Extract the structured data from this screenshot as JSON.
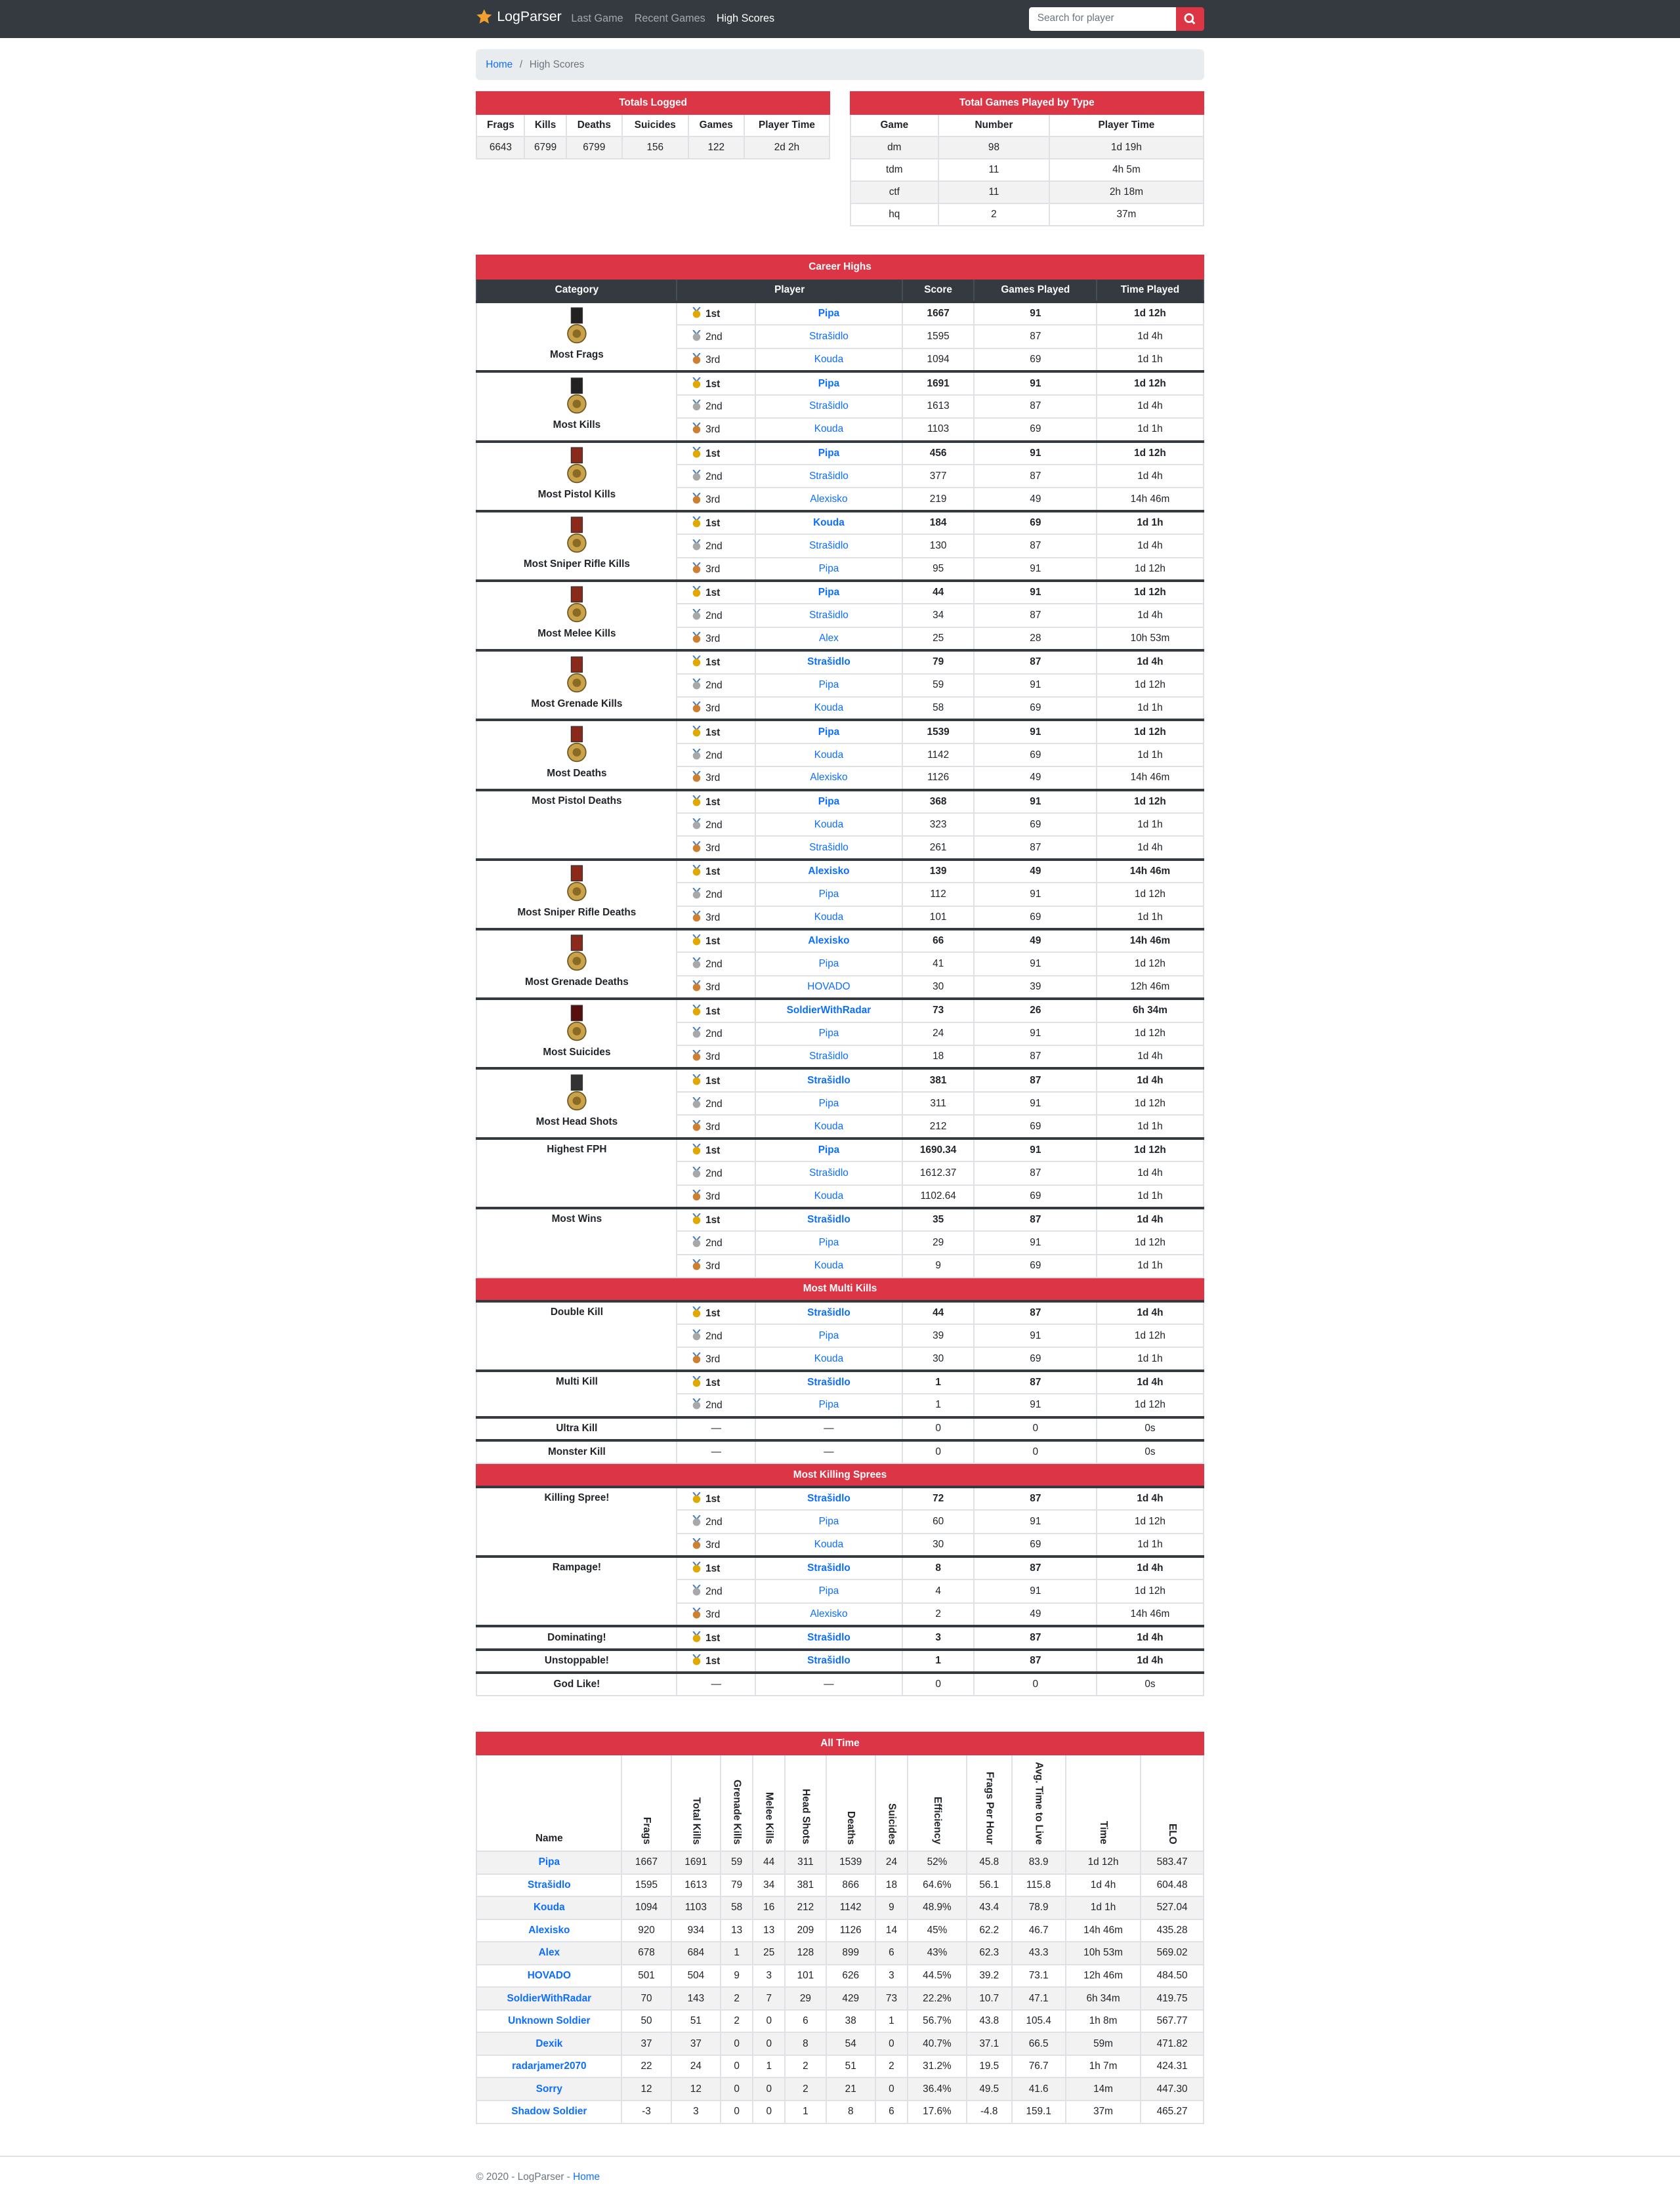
{
  "nav": {
    "brand": "LogParser",
    "links": [
      "Last Game",
      "Recent Games",
      "High Scores"
    ],
    "active": 2,
    "search_placeholder": "Search for player"
  },
  "breadcrumb": {
    "items": [
      "Home",
      "High Scores"
    ],
    "separator": "/"
  },
  "totals": {
    "title": "Totals Logged",
    "headers": [
      "Frags",
      "Kills",
      "Deaths",
      "Suicides",
      "Games",
      "Player Time"
    ],
    "rows": [
      [
        6643,
        6799,
        6799,
        156,
        122,
        "2d 2h"
      ]
    ]
  },
  "games_by_type": {
    "title": "Total Games Played by Type",
    "headers": [
      "Game",
      "Number",
      "Player Time"
    ],
    "rows": [
      [
        "dm",
        98,
        "1d 19h"
      ],
      [
        "tdm",
        11,
        "4h 5m"
      ],
      [
        "ctf",
        11,
        "2h 18m"
      ],
      [
        "hq",
        2,
        "37m"
      ]
    ]
  },
  "career": {
    "headers": [
      "Category",
      "Player",
      "Score",
      "Games Played",
      "Time Played"
    ],
    "sections": [
      {
        "title": "Career Highs",
        "categories": [
          {
            "name": "Most Frags",
            "medal": "#222222",
            "entries": [
              [
                "1st",
                "Pipa",
                1667,
                91,
                "1d 12h"
              ],
              [
                "2nd",
                "Strašidlo",
                1595,
                87,
                "1d 4h"
              ],
              [
                "3rd",
                "Kouda",
                1094,
                69,
                "1d 1h"
              ]
            ]
          },
          {
            "name": "Most Kills",
            "medal": "#222222",
            "entries": [
              [
                "1st",
                "Pipa",
                1691,
                91,
                "1d 12h"
              ],
              [
                "2nd",
                "Strašidlo",
                1613,
                87,
                "1d 4h"
              ],
              [
                "3rd",
                "Kouda",
                1103,
                69,
                "1d 1h"
              ]
            ]
          },
          {
            "name": "Most Pistol Kills",
            "medal": "#8b2a1a",
            "entries": [
              [
                "1st",
                "Pipa",
                456,
                91,
                "1d 12h"
              ],
              [
                "2nd",
                "Strašidlo",
                377,
                87,
                "1d 4h"
              ],
              [
                "3rd",
                "Alexisko",
                219,
                49,
                "14h 46m"
              ]
            ]
          },
          {
            "name": "Most Sniper Rifle Kills",
            "medal": "#8b2a1a",
            "entries": [
              [
                "1st",
                "Kouda",
                184,
                69,
                "1d 1h"
              ],
              [
                "2nd",
                "Strašidlo",
                130,
                87,
                "1d 4h"
              ],
              [
                "3rd",
                "Pipa",
                95,
                91,
                "1d 12h"
              ]
            ]
          },
          {
            "name": "Most Melee Kills",
            "medal": "#8b2a1a",
            "entries": [
              [
                "1st",
                "Pipa",
                44,
                91,
                "1d 12h"
              ],
              [
                "2nd",
                "Strašidlo",
                34,
                87,
                "1d 4h"
              ],
              [
                "3rd",
                "Alex",
                25,
                28,
                "10h 53m"
              ]
            ]
          },
          {
            "name": "Most Grenade Kills",
            "medal": "#8b2a1a",
            "entries": [
              [
                "1st",
                "Strašidlo",
                79,
                87,
                "1d 4h"
              ],
              [
                "2nd",
                "Pipa",
                59,
                91,
                "1d 12h"
              ],
              [
                "3rd",
                "Kouda",
                58,
                69,
                "1d 1h"
              ]
            ]
          },
          {
            "name": "Most Deaths",
            "medal": "#8b2a1a",
            "entries": [
              [
                "1st",
                "Pipa",
                1539,
                91,
                "1d 12h"
              ],
              [
                "2nd",
                "Kouda",
                1142,
                69,
                "1d 1h"
              ],
              [
                "3rd",
                "Alexisko",
                1126,
                49,
                "14h 46m"
              ]
            ]
          },
          {
            "name": "Most Pistol Deaths",
            "entries": [
              [
                "1st",
                "Pipa",
                368,
                91,
                "1d 12h"
              ],
              [
                "2nd",
                "Kouda",
                323,
                69,
                "1d 1h"
              ],
              [
                "3rd",
                "Strašidlo",
                261,
                87,
                "1d 4h"
              ]
            ]
          },
          {
            "name": "Most Sniper Rifle Deaths",
            "medal": "#8b2a1a",
            "entries": [
              [
                "1st",
                "Alexisko",
                139,
                49,
                "14h 46m"
              ],
              [
                "2nd",
                "Pipa",
                112,
                91,
                "1d 12h"
              ],
              [
                "3rd",
                "Kouda",
                101,
                69,
                "1d 1h"
              ]
            ]
          },
          {
            "name": "Most Grenade Deaths",
            "medal": "#8b2a1a",
            "entries": [
              [
                "1st",
                "Alexisko",
                66,
                49,
                "14h 46m"
              ],
              [
                "2nd",
                "Pipa",
                41,
                91,
                "1d 12h"
              ],
              [
                "3rd",
                "HOVADO",
                30,
                39,
                "12h 46m"
              ]
            ]
          },
          {
            "name": "Most Suicides",
            "medal": "#5a0f0f",
            "entries": [
              [
                "1st",
                "SoldierWithRadar",
                73,
                26,
                "6h 34m"
              ],
              [
                "2nd",
                "Pipa",
                24,
                91,
                "1d 12h"
              ],
              [
                "3rd",
                "Strašidlo",
                18,
                87,
                "1d 4h"
              ]
            ]
          },
          {
            "name": "Most Head Shots",
            "medal": "#333333",
            "entries": [
              [
                "1st",
                "Strašidlo",
                381,
                87,
                "1d 4h"
              ],
              [
                "2nd",
                "Pipa",
                311,
                91,
                "1d 12h"
              ],
              [
                "3rd",
                "Kouda",
                212,
                69,
                "1d 1h"
              ]
            ]
          },
          {
            "name": "Highest FPH",
            "entries": [
              [
                "1st",
                "Pipa",
                1690.34,
                91,
                "1d 12h"
              ],
              [
                "2nd",
                "Strašidlo",
                1612.37,
                87,
                "1d 4h"
              ],
              [
                "3rd",
                "Kouda",
                1102.64,
                69,
                "1d 1h"
              ]
            ]
          },
          {
            "name": "Most Wins",
            "entries": [
              [
                "1st",
                "Strašidlo",
                35,
                87,
                "1d 4h"
              ],
              [
                "2nd",
                "Pipa",
                29,
                91,
                "1d 12h"
              ],
              [
                "3rd",
                "Kouda",
                9,
                69,
                "1d 1h"
              ]
            ]
          }
        ]
      },
      {
        "title": "Most Multi Kills",
        "categories": [
          {
            "name": "Double Kill",
            "entries": [
              [
                "1st",
                "Strašidlo",
                44,
                87,
                "1d 4h"
              ],
              [
                "2nd",
                "Pipa",
                39,
                91,
                "1d 12h"
              ],
              [
                "3rd",
                "Kouda",
                30,
                69,
                "1d 1h"
              ]
            ]
          },
          {
            "name": "Multi Kill",
            "entries": [
              [
                "1st",
                "Strašidlo",
                1,
                87,
                "1d 4h"
              ],
              [
                "2nd",
                "Pipa",
                1,
                91,
                "1d 12h"
              ]
            ]
          },
          {
            "name": "Ultra Kill",
            "entries": [
              [
                "—",
                "—",
                0,
                0,
                "0s"
              ]
            ]
          },
          {
            "name": "Monster Kill",
            "entries": [
              [
                "—",
                "—",
                0,
                0,
                "0s"
              ]
            ]
          }
        ]
      },
      {
        "title": "Most Killing Sprees",
        "categories": [
          {
            "name": "Killing Spree!",
            "entries": [
              [
                "1st",
                "Strašidlo",
                72,
                87,
                "1d 4h"
              ],
              [
                "2nd",
                "Pipa",
                60,
                91,
                "1d 12h"
              ],
              [
                "3rd",
                "Kouda",
                30,
                69,
                "1d 1h"
              ]
            ]
          },
          {
            "name": "Rampage!",
            "entries": [
              [
                "1st",
                "Strašidlo",
                8,
                87,
                "1d 4h"
              ],
              [
                "2nd",
                "Pipa",
                4,
                91,
                "1d 12h"
              ],
              [
                "3rd",
                "Alexisko",
                2,
                49,
                "14h 46m"
              ]
            ]
          },
          {
            "name": "Dominating!",
            "entries": [
              [
                "1st",
                "Strašidlo",
                3,
                87,
                "1d 4h"
              ]
            ]
          },
          {
            "name": "Unstoppable!",
            "entries": [
              [
                "1st",
                "Strašidlo",
                1,
                87,
                "1d 4h"
              ]
            ]
          },
          {
            "name": "God Like!",
            "entries": [
              [
                "—",
                "—",
                0,
                0,
                "0s"
              ]
            ]
          }
        ]
      }
    ]
  },
  "all_time": {
    "title": "All Time",
    "headers": [
      "Name",
      "Frags",
      "Total Kills",
      "Grenade Kills",
      "Melee Kills",
      "Head Shots",
      "Deaths",
      "Suicides",
      "Efficiency",
      "Frags Per Hour",
      "Avg. Time to Live",
      "Time",
      "ELO"
    ],
    "rows": [
      [
        "Pipa",
        1667,
        1691,
        59,
        44,
        311,
        1539,
        24,
        "52%",
        45.8,
        83.9,
        "1d 12h",
        583.47
      ],
      [
        "Strašidlo",
        1595,
        1613,
        79,
        34,
        381,
        866,
        18,
        "64.6%",
        56.1,
        115.8,
        "1d 4h",
        604.48
      ],
      [
        "Kouda",
        1094,
        1103,
        58,
        16,
        212,
        1142,
        9,
        "48.9%",
        43.4,
        78.9,
        "1d 1h",
        527.04
      ],
      [
        "Alexisko",
        920,
        934,
        13,
        13,
        209,
        1126,
        14,
        "45%",
        62.2,
        46.7,
        "14h 46m",
        435.28
      ],
      [
        "Alex",
        678,
        684,
        1,
        25,
        128,
        899,
        6,
        "43%",
        62.3,
        43.3,
        "10h 53m",
        569.02
      ],
      [
        "HOVADO",
        501,
        504,
        9,
        3,
        101,
        626,
        3,
        "44.5%",
        39.2,
        73.1,
        "12h 46m",
        "484.50"
      ],
      [
        "SoldierWithRadar",
        70,
        143,
        2,
        7,
        29,
        429,
        73,
        "22.2%",
        10.7,
        47.1,
        "6h 34m",
        419.75
      ],
      [
        "Unknown Soldier",
        50,
        51,
        2,
        0,
        6,
        38,
        1,
        "56.7%",
        43.8,
        105.4,
        "1h 8m",
        567.77
      ],
      [
        "Dexik",
        37,
        37,
        0,
        0,
        8,
        54,
        0,
        "40.7%",
        37.1,
        66.5,
        "59m",
        471.82
      ],
      [
        "radarjamer2070",
        22,
        24,
        0,
        1,
        2,
        51,
        2,
        "31.2%",
        19.5,
        76.7,
        "1h 7m",
        424.31
      ],
      [
        "Sorry",
        12,
        12,
        0,
        0,
        2,
        21,
        0,
        "36.4%",
        49.5,
        41.6,
        "14m",
        "447.30"
      ],
      [
        "Shadow Soldier",
        -3,
        3,
        0,
        0,
        1,
        8,
        6,
        "17.6%",
        -4.8,
        159.1,
        "37m",
        465.27
      ]
    ]
  },
  "footer": {
    "text": "© 2020 - LogParser -",
    "link": "Home"
  }
}
